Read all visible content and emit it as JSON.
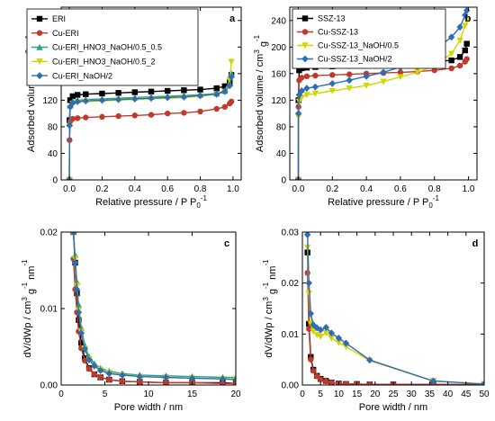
{
  "chart_data": [
    {
      "type": "line",
      "panel_label": "a",
      "xlabel_main": "Relative pressure / P P",
      "xlabel_sub": "0",
      "xlabel_sup": "-1",
      "ylabel_main": "Adsorbed volume / cm",
      "ylabel_sup1": "3",
      "ylabel_mid": " g",
      "ylabel_sup2": "-1",
      "xlim": [
        -0.05,
        1.05
      ],
      "ylim": [
        0,
        260
      ],
      "xticks": [
        0.0,
        0.2,
        0.4,
        0.6,
        0.8,
        1.0
      ],
      "xtick_labels": [
        "0.0",
        "0.2",
        "0.4",
        "0.6",
        "0.8",
        "1.0"
      ],
      "yticks": [
        0,
        40,
        80,
        120,
        160,
        200,
        240
      ],
      "ytick_labels": [
        "0",
        "40",
        "80",
        "120",
        "160",
        "200",
        "240"
      ],
      "legend_position": "top-left",
      "series": [
        {
          "name": "ERI",
          "color": "#000000",
          "marker": "square",
          "x": [
            0.0,
            0.001,
            0.005,
            0.02,
            0.05,
            0.1,
            0.2,
            0.3,
            0.4,
            0.5,
            0.6,
            0.7,
            0.8,
            0.9,
            0.95,
            0.98,
            0.99
          ],
          "y": [
            0,
            90,
            120,
            126,
            128,
            129,
            130,
            131,
            132,
            133,
            134,
            135,
            136,
            138,
            141,
            147,
            158
          ]
        },
        {
          "name": "Cu-ERI",
          "color": "#c0392b",
          "marker": "circle",
          "x": [
            0.0,
            0.001,
            0.005,
            0.02,
            0.05,
            0.1,
            0.2,
            0.3,
            0.4,
            0.5,
            0.6,
            0.7,
            0.8,
            0.9,
            0.95,
            0.98,
            0.99
          ],
          "y": [
            0,
            60,
            88,
            92,
            93,
            94,
            95,
            96,
            97,
            98,
            100,
            101,
            103,
            107,
            110,
            115,
            118
          ]
        },
        {
          "name": "Cu-ERI_HNO3_NaOH/0.5_0.5",
          "color": "#2aa189",
          "marker": "triangle-up",
          "x": [
            0.0,
            0.001,
            0.005,
            0.02,
            0.05,
            0.1,
            0.2,
            0.3,
            0.4,
            0.5,
            0.6,
            0.7,
            0.8,
            0.9,
            0.95,
            0.98,
            0.99
          ],
          "y": [
            0,
            85,
            112,
            118,
            120,
            121,
            122,
            123,
            124,
            125,
            126,
            127,
            128,
            130,
            134,
            145,
            160
          ]
        },
        {
          "name": "Cu-ERI_HNO3_NaOH/0.5_2",
          "color": "#d4d400",
          "marker": "triangle-down",
          "x": [
            0.0,
            0.001,
            0.005,
            0.02,
            0.05,
            0.1,
            0.2,
            0.3,
            0.4,
            0.5,
            0.6,
            0.7,
            0.8,
            0.9,
            0.95,
            0.98,
            0.99
          ],
          "y": [
            0,
            80,
            108,
            115,
            117,
            118,
            119,
            120,
            121,
            122,
            123,
            124,
            126,
            129,
            133,
            150,
            178
          ]
        },
        {
          "name": "Cu-ERI_NaOH/2",
          "color": "#2f6db3",
          "marker": "diamond",
          "x": [
            0.0,
            0.001,
            0.005,
            0.02,
            0.05,
            0.1,
            0.2,
            0.3,
            0.4,
            0.5,
            0.6,
            0.7,
            0.8,
            0.9,
            0.95,
            0.98,
            0.99
          ],
          "y": [
            0,
            82,
            110,
            116,
            118,
            119,
            120,
            121,
            122,
            123,
            124,
            125,
            127,
            129,
            133,
            142,
            155
          ]
        }
      ]
    },
    {
      "type": "line",
      "panel_label": "b",
      "xlabel_main": "Relative pressure / P P",
      "xlabel_sub": "0",
      "xlabel_sup": "-1",
      "ylabel_main": "Adsorbed volume / cm",
      "ylabel_sup1": "3",
      "ylabel_mid": " g",
      "ylabel_sup2": "-1",
      "xlim": [
        -0.05,
        1.05
      ],
      "ylim": [
        0,
        260
      ],
      "xticks": [
        0.0,
        0.2,
        0.4,
        0.6,
        0.8,
        1.0
      ],
      "xtick_labels": [
        "0.0",
        "0.2",
        "0.4",
        "0.6",
        "0.8",
        "1.0"
      ],
      "yticks": [
        0,
        40,
        80,
        120,
        160,
        200,
        240
      ],
      "ytick_labels": [
        "0",
        "40",
        "80",
        "120",
        "160",
        "200",
        "240"
      ],
      "legend_position": "top-right",
      "series": [
        {
          "name": "SSZ-13",
          "color": "#000000",
          "marker": "square",
          "x": [
            0.0,
            0.001,
            0.005,
            0.02,
            0.05,
            0.1,
            0.2,
            0.3,
            0.4,
            0.5,
            0.6,
            0.7,
            0.8,
            0.9,
            0.95,
            0.98,
            0.99
          ],
          "y": [
            0,
            120,
            165,
            168,
            169,
            170,
            171,
            172,
            173,
            174,
            175,
            176,
            178,
            180,
            185,
            195,
            205
          ]
        },
        {
          "name": "Cu-SSZ-13",
          "color": "#c0392b",
          "marker": "circle",
          "x": [
            0.0,
            0.001,
            0.005,
            0.02,
            0.05,
            0.1,
            0.2,
            0.3,
            0.4,
            0.5,
            0.6,
            0.7,
            0.8,
            0.9,
            0.95,
            0.98,
            0.99
          ],
          "y": [
            0,
            110,
            150,
            154,
            156,
            157,
            158,
            159,
            160,
            161,
            162,
            163,
            165,
            168,
            172,
            178,
            182
          ]
        },
        {
          "name": "Cu-SSZ-13_NaOH/0.5",
          "color": "#d4d400",
          "marker": "triangle-down",
          "x": [
            0.0,
            0.001,
            0.005,
            0.02,
            0.05,
            0.1,
            0.2,
            0.3,
            0.4,
            0.5,
            0.6,
            0.7,
            0.8,
            0.9,
            0.95,
            0.98,
            0.99
          ],
          "y": [
            0,
            95,
            118,
            124,
            128,
            130,
            134,
            138,
            142,
            148,
            155,
            162,
            172,
            190,
            210,
            232,
            240
          ]
        },
        {
          "name": "Cu-SSZ-13_NaOH/2",
          "color": "#2f6db3",
          "marker": "diamond",
          "x": [
            0.0,
            0.001,
            0.005,
            0.02,
            0.05,
            0.1,
            0.2,
            0.3,
            0.4,
            0.5,
            0.6,
            0.7,
            0.8,
            0.9,
            0.95,
            0.98,
            0.99
          ],
          "y": [
            0,
            100,
            128,
            134,
            138,
            140,
            145,
            150,
            156,
            162,
            170,
            180,
            195,
            215,
            230,
            248,
            255
          ]
        }
      ]
    },
    {
      "type": "line",
      "panel_label": "c",
      "xlabel_main": "Pore width / nm",
      "ylabel_main": "dV/dWp / cm",
      "ylabel_sup1": "3",
      "ylabel_mid": " g",
      "ylabel_sup2": "-1",
      "ylabel_tail": " nm",
      "ylabel_sup3": "-1",
      "xlim": [
        0,
        20
      ],
      "ylim": [
        0,
        0.02
      ],
      "xticks": [
        0,
        5,
        10,
        15,
        20
      ],
      "xtick_labels": [
        "0",
        "5",
        "10",
        "15",
        "20"
      ],
      "yticks": [
        0.0,
        0.01,
        0.02
      ],
      "ytick_labels": [
        "0.00",
        "0.01",
        "0.02"
      ],
      "series": [
        {
          "name": "ERI",
          "color": "#000000",
          "marker": "square",
          "x": [
            1.4,
            1.6,
            1.8,
            2.0,
            2.3,
            2.7,
            3.2,
            3.8,
            4.5,
            5.5,
            7,
            9,
            12,
            15,
            18.5,
            20
          ],
          "y": [
            0.02,
            0.016,
            0.012,
            0.0085,
            0.0055,
            0.0035,
            0.0022,
            0.0014,
            0.001,
            0.0007,
            0.0005,
            0.0004,
            0.0003,
            0.0003,
            0.0003,
            0.0002
          ]
        },
        {
          "name": "Cu-ERI",
          "color": "#c0392b",
          "marker": "circle",
          "x": [
            1.4,
            1.6,
            1.8,
            2.0,
            2.3,
            2.7,
            3.2,
            3.8,
            4.5,
            5.5,
            7,
            9,
            12,
            15,
            18.5,
            20
          ],
          "y": [
            0.0165,
            0.0125,
            0.0095,
            0.007,
            0.0048,
            0.0032,
            0.0021,
            0.0014,
            0.001,
            0.0007,
            0.0005,
            0.0004,
            0.0003,
            0.0003,
            0.0002,
            0.0002
          ]
        },
        {
          "name": "Cu-ERI_HNO3_NaOH/0.5_0.5",
          "color": "#2aa189",
          "marker": "triangle-up",
          "x": [
            1.4,
            1.6,
            1.8,
            2.0,
            2.3,
            2.7,
            3.2,
            3.8,
            4.5,
            5.5,
            7,
            9,
            12,
            15,
            18.5,
            20
          ],
          "y": [
            0.02,
            0.017,
            0.0135,
            0.0105,
            0.0075,
            0.0052,
            0.0037,
            0.0028,
            0.0022,
            0.0018,
            0.0015,
            0.0013,
            0.0012,
            0.0011,
            0.001,
            0.001
          ]
        },
        {
          "name": "Cu-ERI_HNO3_NaOH/0.5_2",
          "color": "#d4d400",
          "marker": "triangle-down",
          "x": [
            1.4,
            1.6,
            1.8,
            2.0,
            2.3,
            2.7,
            3.2,
            3.8,
            4.5,
            5.5,
            7,
            9,
            12,
            15,
            18.5,
            20
          ],
          "y": [
            0.02,
            0.0165,
            0.013,
            0.0098,
            0.007,
            0.0048,
            0.0034,
            0.0025,
            0.002,
            0.0016,
            0.0013,
            0.0011,
            0.001,
            0.0009,
            0.0008,
            0.0008
          ]
        },
        {
          "name": "Cu-ERI_NaOH/2",
          "color": "#2f6db3",
          "marker": "diamond",
          "x": [
            1.4,
            1.6,
            1.8,
            2.0,
            2.3,
            2.7,
            3.2,
            3.8,
            4.5,
            5.5,
            7,
            9,
            12,
            15,
            18.5,
            20
          ],
          "y": [
            0.02,
            0.016,
            0.0125,
            0.0095,
            0.0068,
            0.0047,
            0.0033,
            0.0025,
            0.0019,
            0.0015,
            0.0013,
            0.0011,
            0.001,
            0.0009,
            0.0008,
            0.0007
          ]
        }
      ]
    },
    {
      "type": "line",
      "panel_label": "d",
      "xlabel_main": "Pore width / nm",
      "ylabel_main": "dV/dWp / cm",
      "ylabel_sup1": "3",
      "ylabel_mid": " g",
      "ylabel_sup2": "-1",
      "ylabel_tail": " nm",
      "ylabel_sup3": "-1",
      "xlim": [
        0,
        50
      ],
      "ylim": [
        0,
        0.03
      ],
      "xticks": [
        0,
        5,
        10,
        15,
        20,
        25,
        30,
        35,
        40,
        45,
        50
      ],
      "xtick_labels": [
        "0",
        "5",
        "10",
        "15",
        "20",
        "25",
        "30",
        "35",
        "40",
        "45",
        "50"
      ],
      "yticks": [
        0.0,
        0.01,
        0.02,
        0.03
      ],
      "ytick_labels": [
        "0.00",
        "0.01",
        "0.02",
        "0.03"
      ],
      "series": [
        {
          "name": "SSZ-13",
          "color": "#000000",
          "marker": "square",
          "x": [
            1.4,
            1.8,
            2.3,
            3,
            4,
            5,
            6.5,
            8,
            10,
            12,
            15,
            18.5,
            25,
            36,
            50
          ],
          "y": [
            0.026,
            0.012,
            0.0055,
            0.003,
            0.0018,
            0.0012,
            0.0008,
            0.0005,
            0.0003,
            0.0002,
            0.0002,
            0.0001,
            0.0001,
            0.0001,
            0.0001
          ]
        },
        {
          "name": "Cu-SSZ-13",
          "color": "#c0392b",
          "marker": "circle",
          "x": [
            1.4,
            1.8,
            2.3,
            3,
            4,
            5,
            6.5,
            8,
            10,
            12,
            15,
            18.5,
            25,
            36,
            50
          ],
          "y": [
            0.022,
            0.011,
            0.005,
            0.0028,
            0.0017,
            0.0011,
            0.0007,
            0.0005,
            0.0003,
            0.0002,
            0.0002,
            0.0001,
            0.0001,
            0.0001,
            0.0001
          ]
        },
        {
          "name": "Cu-SSZ-13_NaOH/0.5",
          "color": "#d4d400",
          "marker": "triangle-down",
          "x": [
            1.4,
            1.8,
            2.3,
            3,
            4,
            5,
            6.5,
            8,
            10,
            12,
            18.5,
            36,
            50
          ],
          "y": [
            0.027,
            0.018,
            0.012,
            0.0105,
            0.0098,
            0.0095,
            0.0102,
            0.0092,
            0.0083,
            0.0075,
            0.0048,
            0.0008,
            0.0002
          ]
        },
        {
          "name": "Cu-SSZ-13_NaOH/2",
          "color": "#2f6db3",
          "marker": "diamond",
          "x": [
            1.4,
            1.8,
            2.3,
            3,
            4,
            5,
            6.5,
            8,
            10,
            12,
            18.5,
            36,
            50
          ],
          "y": [
            0.0295,
            0.02,
            0.014,
            0.0118,
            0.0112,
            0.0108,
            0.0113,
            0.0102,
            0.0092,
            0.0082,
            0.0049,
            0.0008,
            0.0002
          ]
        }
      ]
    }
  ]
}
